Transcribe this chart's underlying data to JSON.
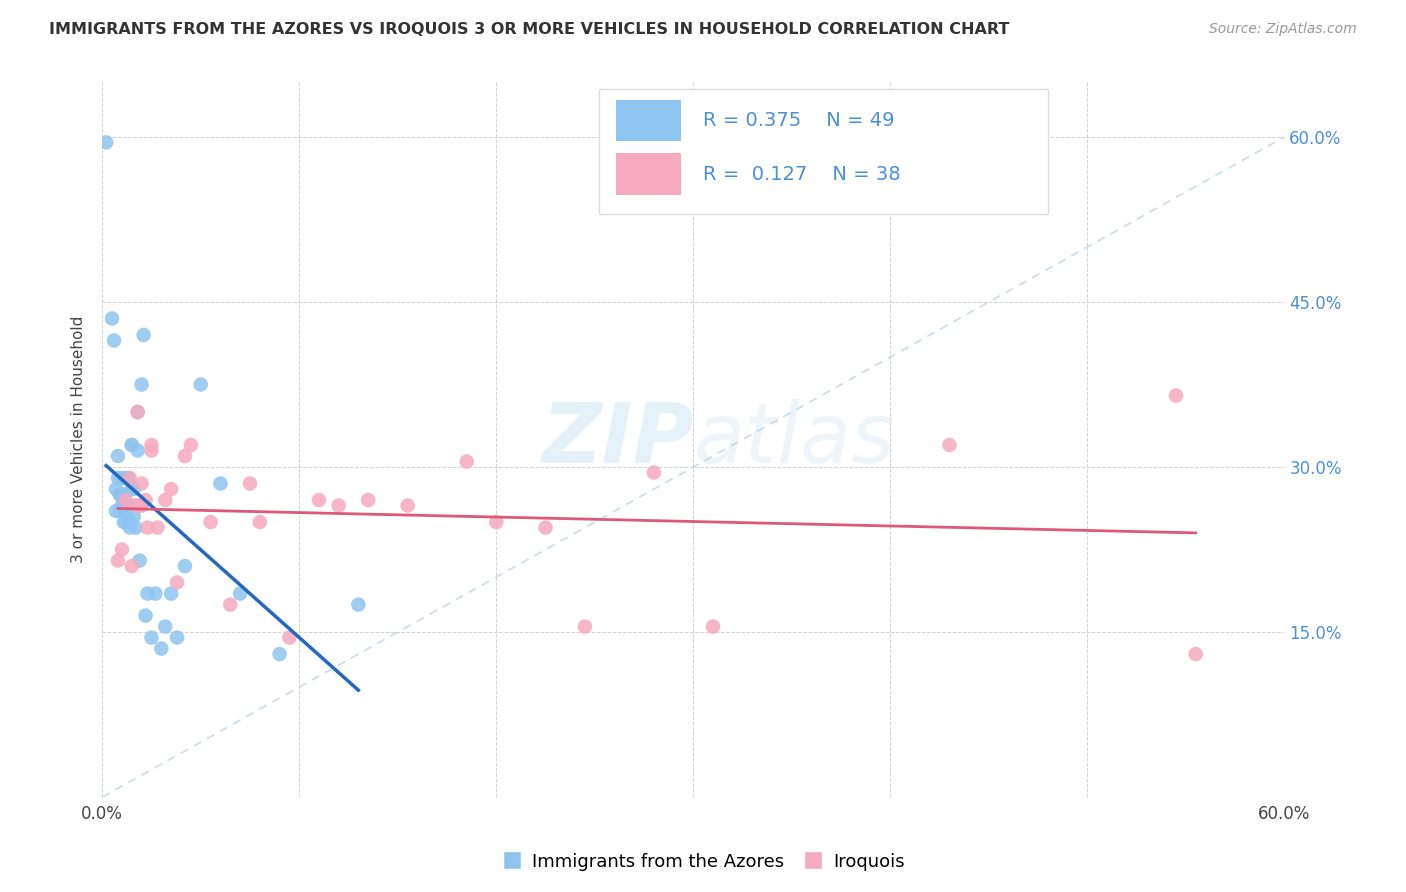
{
  "title": "IMMIGRANTS FROM THE AZORES VS IROQUOIS 3 OR MORE VEHICLES IN HOUSEHOLD CORRELATION CHART",
  "source": "Source: ZipAtlas.com",
  "ylabel": "3 or more Vehicles in Household",
  "xmin": 0.0,
  "xmax": 0.6,
  "ymin": 0.0,
  "ymax": 0.65,
  "xticks": [
    0.0,
    0.1,
    0.2,
    0.3,
    0.4,
    0.5,
    0.6
  ],
  "xtick_labels": [
    "0.0%",
    "",
    "",
    "",
    "",
    "",
    "60.0%"
  ],
  "yticks": [
    0.15,
    0.3,
    0.45,
    0.6
  ],
  "ytick_labels_right": [
    "15.0%",
    "30.0%",
    "45.0%",
    "60.0%"
  ],
  "legend1_label": "Immigrants from the Azores",
  "legend2_label": "Iroquois",
  "R1": 0.375,
  "N1": 49,
  "R2": 0.127,
  "N2": 38,
  "color_blue": "#8EC5F0",
  "color_pink": "#F5AABF",
  "color_blue_text": "#4A90D9",
  "color_line_blue": "#2468C0",
  "color_line_pink": "#E05878",
  "color_diag": "#B8CCDD",
  "blue_x": [
    0.002,
    0.005,
    0.006,
    0.007,
    0.007,
    0.008,
    0.008,
    0.009,
    0.009,
    0.009,
    0.01,
    0.01,
    0.011,
    0.011,
    0.011,
    0.012,
    0.012,
    0.012,
    0.013,
    0.013,
    0.013,
    0.014,
    0.014,
    0.015,
    0.015,
    0.015,
    0.016,
    0.016,
    0.017,
    0.017,
    0.018,
    0.018,
    0.019,
    0.02,
    0.021,
    0.022,
    0.023,
    0.025,
    0.027,
    0.03,
    0.032,
    0.035,
    0.038,
    0.042,
    0.05,
    0.06,
    0.07,
    0.09,
    0.13
  ],
  "blue_y": [
    0.595,
    0.435,
    0.415,
    0.28,
    0.26,
    0.31,
    0.29,
    0.275,
    0.26,
    0.275,
    0.265,
    0.29,
    0.265,
    0.25,
    0.275,
    0.29,
    0.26,
    0.25,
    0.265,
    0.29,
    0.265,
    0.25,
    0.245,
    0.28,
    0.32,
    0.32,
    0.28,
    0.255,
    0.265,
    0.245,
    0.315,
    0.35,
    0.215,
    0.375,
    0.42,
    0.165,
    0.185,
    0.145,
    0.185,
    0.135,
    0.155,
    0.185,
    0.145,
    0.21,
    0.375,
    0.285,
    0.185,
    0.13,
    0.175
  ],
  "pink_x": [
    0.008,
    0.01,
    0.012,
    0.014,
    0.015,
    0.017,
    0.018,
    0.019,
    0.02,
    0.02,
    0.022,
    0.023,
    0.025,
    0.025,
    0.028,
    0.032,
    0.035,
    0.038,
    0.042,
    0.045,
    0.055,
    0.065,
    0.075,
    0.08,
    0.095,
    0.11,
    0.12,
    0.135,
    0.155,
    0.185,
    0.2,
    0.225,
    0.245,
    0.28,
    0.31,
    0.43,
    0.545,
    0.555
  ],
  "pink_y": [
    0.215,
    0.225,
    0.27,
    0.29,
    0.21,
    0.265,
    0.35,
    0.265,
    0.265,
    0.285,
    0.27,
    0.245,
    0.32,
    0.315,
    0.245,
    0.27,
    0.28,
    0.195,
    0.31,
    0.32,
    0.25,
    0.175,
    0.285,
    0.25,
    0.145,
    0.27,
    0.265,
    0.27,
    0.265,
    0.305,
    0.25,
    0.245,
    0.155,
    0.295,
    0.155,
    0.32,
    0.365,
    0.13
  ]
}
